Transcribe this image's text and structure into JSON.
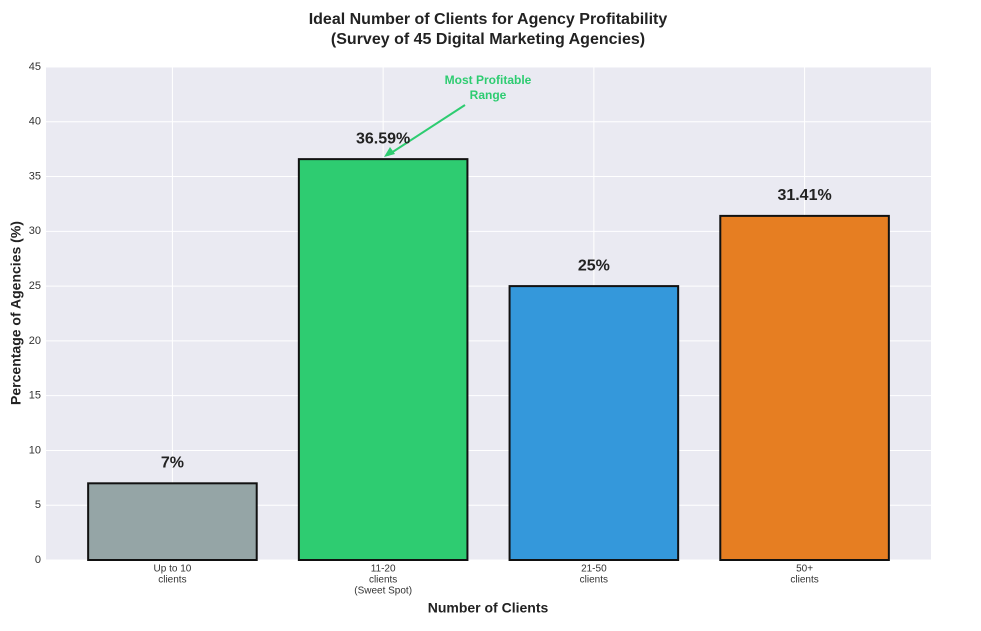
{
  "chart_data": {
    "type": "bar",
    "title": [
      "Ideal Number of Clients for Agency Profitability",
      "(Survey of 45 Digital Marketing Agencies)"
    ],
    "x_label": "Number of Clients",
    "y_label": "Percentage of Agencies (%)",
    "categories": [
      [
        "Up to 10",
        "clients"
      ],
      [
        "11-20",
        "clients",
        "(Sweet Spot)"
      ],
      [
        "21-50",
        "clients"
      ],
      [
        "50+",
        "clients"
      ]
    ],
    "values": [
      7,
      36.59,
      25,
      31.41
    ],
    "value_labels": [
      "7%",
      "36.59%",
      "25%",
      "31.41%"
    ],
    "colors": [
      "#95a5a6",
      "#2ecc71",
      "#3498db",
      "#e67e22"
    ],
    "ylim": [
      0,
      45
    ],
    "yticks": [
      0,
      5,
      10,
      15,
      20,
      25,
      30,
      35,
      40,
      45
    ],
    "grid": true,
    "annotation": {
      "text": [
        "Most Profitable",
        "Range"
      ],
      "color": "#2ecc71"
    }
  }
}
